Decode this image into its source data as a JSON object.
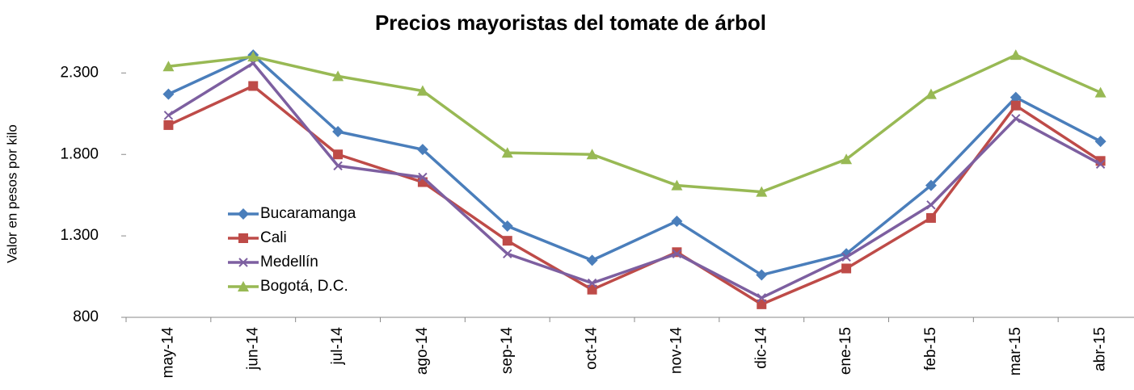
{
  "chart_data": {
    "type": "line",
    "title": "Precios mayoristas del tomate de árbol",
    "y_label": "Valor en pesos por kilo",
    "categories": [
      "may-14",
      "jun-14",
      "jul-14",
      "ago-14",
      "sep-14",
      "oct-14",
      "nov-14",
      "dic-14",
      "ene-15",
      "feb-15",
      "mar-15",
      "abr-15"
    ],
    "series": [
      {
        "name": "Bucaramanga",
        "color": "#4a7ebb",
        "marker": "diamond",
        "values": [
          2170,
          2410,
          1940,
          1830,
          1360,
          1150,
          1390,
          1060,
          1190,
          1610,
          2150,
          1880
        ]
      },
      {
        "name": "Cali",
        "color": "#be4b48",
        "marker": "square",
        "values": [
          1980,
          2220,
          1800,
          1630,
          1270,
          970,
          1200,
          880,
          1100,
          1410,
          2100,
          1760
        ]
      },
      {
        "name": "Medellín",
        "color": "#7d5fa0",
        "marker": "x",
        "values": [
          2040,
          2360,
          1730,
          1660,
          1190,
          1010,
          1190,
          920,
          1170,
          1490,
          2020,
          1740
        ]
      },
      {
        "name": "Bogotá, D.C.",
        "color": "#98b954",
        "marker": "triangle",
        "values": [
          2340,
          2400,
          2280,
          2190,
          1810,
          1800,
          1610,
          1570,
          1770,
          2170,
          2410,
          2180
        ]
      }
    ],
    "ylim": [
      800,
      2500
    ],
    "yticks": [
      800,
      {
        "value": 1300,
        "label": "1.300"
      },
      {
        "value": 1800,
        "label": "1.800"
      },
      {
        "value": 2300,
        "label": "2.300"
      }
    ],
    "grid": false,
    "legend": "left"
  }
}
